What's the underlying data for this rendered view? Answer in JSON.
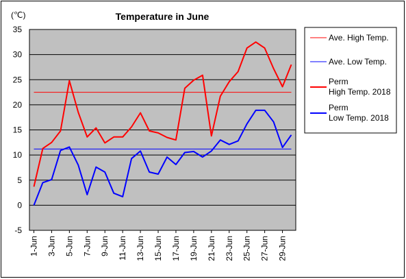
{
  "chart_data": {
    "type": "line",
    "title": "Temperature in June",
    "unit_label": "(℃)",
    "ylim": [
      -5,
      35
    ],
    "y_ticks": [
      35,
      30,
      25,
      20,
      15,
      10,
      5,
      0,
      -5
    ],
    "x_tick_labels": [
      "1-Jun",
      "3-Jun",
      "5-Jun",
      "7-Jun",
      "9-Jun",
      "11-Jun",
      "13-Jun",
      "15-Jun",
      "17-Jun",
      "19-Jun",
      "21-Jun",
      "23-Jun",
      "25-Jun",
      "27-Jun",
      "29-Jun"
    ],
    "days": [
      1,
      2,
      3,
      4,
      5,
      6,
      7,
      8,
      9,
      10,
      11,
      12,
      13,
      14,
      15,
      16,
      17,
      18,
      19,
      20,
      21,
      22,
      23,
      24,
      25,
      26,
      27,
      28,
      29,
      30
    ],
    "grid": true,
    "legend_position": "right",
    "series": [
      {
        "name": "Ave. High Temp.",
        "color": "#ff0000",
        "kind": "constant",
        "value": 22.5
      },
      {
        "name": "Ave. Low Temp.",
        "color": "#0000ff",
        "kind": "constant",
        "value": 11.2
      },
      {
        "name": "Perm\nHigh Temp. 2018",
        "color": "#ff0000",
        "kind": "daily",
        "values": [
          3.7,
          11.3,
          12.5,
          14.8,
          24.8,
          18.5,
          13.6,
          15.4,
          12.4,
          13.6,
          13.6,
          15.6,
          18.4,
          14.8,
          14.4,
          13.5,
          13.0,
          23.3,
          24.9,
          25.9,
          13.8,
          21.7,
          24.6,
          26.6,
          31.3,
          32.5,
          31.3,
          27.2,
          23.6,
          28.0
        ]
      },
      {
        "name": "Perm\nLow Temp. 2018",
        "color": "#0000ff",
        "kind": "daily",
        "values": [
          0.0,
          4.5,
          5.1,
          10.9,
          11.6,
          8.0,
          2.1,
          7.6,
          6.6,
          2.4,
          1.7,
          9.3,
          10.8,
          6.6,
          6.2,
          9.6,
          8.1,
          10.5,
          10.7,
          9.6,
          10.8,
          13.0,
          12.1,
          12.8,
          16.2,
          18.9,
          18.9,
          16.6,
          11.5,
          14.0
        ]
      }
    ]
  }
}
